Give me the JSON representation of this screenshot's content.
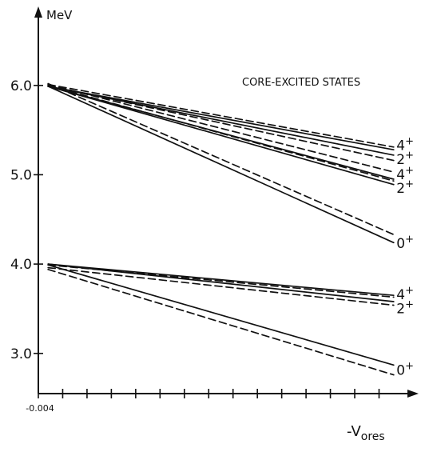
{
  "chart_data": {
    "type": "line",
    "ylabel": "MeV",
    "xlabel": "-V",
    "xlabel_sub": "ores",
    "x_tick_label": "-0.004",
    "xlim": [
      -0.004,
      -0.0342
    ],
    "ylim": [
      2.55,
      6.58
    ],
    "y_ticks": [
      {
        "value": 3.0,
        "label": "3.0"
      },
      {
        "value": 4.0,
        "label": "4.0"
      },
      {
        "value": 5.0,
        "label": "5.0"
      },
      {
        "value": 6.0,
        "label": "6.0"
      }
    ],
    "x_ticks": [
      -0.004,
      -0.006,
      -0.008,
      -0.01,
      -0.012,
      -0.014,
      -0.016,
      -0.018,
      -0.02,
      -0.022,
      -0.024,
      -0.026,
      -0.028,
      -0.03,
      -0.032
    ],
    "annotation": "CORE-EXCITED STATES",
    "series": [
      {
        "group": "core-excited",
        "state": "4+",
        "style": "solid",
        "x": [
          -0.0048,
          -0.0332
        ],
        "y": [
          5.99,
          5.28
        ]
      },
      {
        "group": "core-excited",
        "state": "4+",
        "style": "dashed",
        "x": [
          -0.0048,
          -0.0332
        ],
        "y": [
          6.01,
          5.31
        ]
      },
      {
        "group": "core-excited",
        "state": "2+",
        "style": "solid",
        "x": [
          -0.0048,
          -0.0332
        ],
        "y": [
          5.99,
          5.22
        ]
      },
      {
        "group": "core-excited",
        "state": "2+",
        "style": "dashed",
        "x": [
          -0.0048,
          -0.0332
        ],
        "y": [
          6.0,
          5.16
        ]
      },
      {
        "group": "core-excited",
        "state": "4+",
        "style": "solid",
        "x": [
          -0.0048,
          -0.0332
        ],
        "y": [
          5.99,
          4.95
        ]
      },
      {
        "group": "core-excited",
        "state": "4+",
        "style": "dashed",
        "x": [
          -0.0048,
          -0.0332
        ],
        "y": [
          6.01,
          5.03
        ]
      },
      {
        "group": "core-excited",
        "state": "2+",
        "style": "solid",
        "x": [
          -0.0048,
          -0.0332
        ],
        "y": [
          5.99,
          4.89
        ]
      },
      {
        "group": "core-excited",
        "state": "2+",
        "style": "dashed",
        "x": [
          -0.0048,
          -0.0332
        ],
        "y": [
          6.0,
          4.93
        ]
      },
      {
        "group": "core-excited",
        "state": "0+",
        "style": "solid",
        "x": [
          -0.0048,
          -0.0332
        ],
        "y": [
          5.99,
          4.24
        ]
      },
      {
        "group": "core-excited",
        "state": "0+",
        "style": "dashed",
        "x": [
          -0.0048,
          -0.0332
        ],
        "y": [
          6.02,
          4.33
        ]
      },
      {
        "group": "low-lying",
        "state": "4+",
        "style": "solid",
        "x": [
          -0.0048,
          -0.0332
        ],
        "y": [
          4.0,
          3.65
        ]
      },
      {
        "group": "low-lying",
        "state": "4+",
        "style": "dashed",
        "x": [
          -0.0048,
          -0.0332
        ],
        "y": [
          3.99,
          3.63
        ]
      },
      {
        "group": "low-lying",
        "state": "2+",
        "style": "solid",
        "x": [
          -0.0048,
          -0.0332
        ],
        "y": [
          4.0,
          3.58
        ]
      },
      {
        "group": "low-lying",
        "state": "2+",
        "style": "dashed",
        "x": [
          -0.0048,
          -0.0332
        ],
        "y": [
          3.96,
          3.54
        ]
      },
      {
        "group": "low-lying",
        "state": "0+",
        "style": "solid",
        "x": [
          -0.0048,
          -0.0332
        ],
        "y": [
          3.99,
          2.87
        ]
      },
      {
        "group": "low-lying",
        "state": "0+",
        "style": "dashed",
        "x": [
          -0.0048,
          -0.0332
        ],
        "y": [
          3.94,
          2.76
        ]
      }
    ],
    "state_labels": [
      {
        "base": "4",
        "sup": "+",
        "x": -0.0333,
        "y": 5.35
      },
      {
        "base": "2",
        "sup": "+",
        "x": -0.0333,
        "y": 5.19
      },
      {
        "base": "4",
        "sup": "+",
        "x": -0.0333,
        "y": 5.02
      },
      {
        "base": "2",
        "sup": "+",
        "x": -0.0333,
        "y": 4.87
      },
      {
        "base": "0",
        "sup": "+",
        "x": -0.0333,
        "y": 4.25
      },
      {
        "base": "4",
        "sup": "+",
        "x": -0.0333,
        "y": 3.68
      },
      {
        "base": "2",
        "sup": "+",
        "x": -0.0333,
        "y": 3.52
      },
      {
        "base": "0",
        "sup": "+",
        "x": -0.0333,
        "y": 2.83
      }
    ]
  }
}
